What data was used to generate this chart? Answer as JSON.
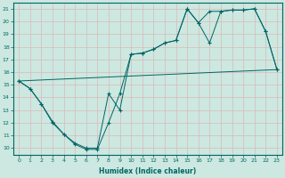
{
  "xlabel": "Humidex (Indice chaleur)",
  "bg_color": "#cce8e0",
  "grid_color": "#dbb8b8",
  "line_color": "#006666",
  "xlim": [
    -0.5,
    23.5
  ],
  "ylim": [
    9.5,
    21.5
  ],
  "xticks": [
    0,
    1,
    2,
    3,
    4,
    5,
    6,
    7,
    8,
    9,
    10,
    11,
    12,
    13,
    14,
    15,
    16,
    17,
    18,
    19,
    20,
    21,
    22,
    23
  ],
  "yticks": [
    10,
    11,
    12,
    13,
    14,
    15,
    16,
    17,
    18,
    19,
    20,
    21
  ],
  "line1_x": [
    0,
    1,
    2,
    3,
    4,
    5,
    6,
    7,
    8,
    9,
    10,
    11,
    12,
    13,
    14,
    15,
    16,
    17,
    18,
    19,
    20,
    21,
    22,
    23
  ],
  "line1_y": [
    15.3,
    14.7,
    13.5,
    12.0,
    11.1,
    10.3,
    9.9,
    9.9,
    12.0,
    14.3,
    17.4,
    17.5,
    17.8,
    18.3,
    18.5,
    21.0,
    19.9,
    20.8,
    20.8,
    20.9,
    20.9,
    21.0,
    19.2,
    16.2
  ],
  "line2_x": [
    0,
    1,
    2,
    3,
    4,
    5,
    6,
    7,
    8,
    9,
    10,
    11,
    12,
    13,
    14,
    15,
    16,
    17,
    18,
    19,
    20,
    21,
    22,
    23
  ],
  "line2_y": [
    15.3,
    14.7,
    13.5,
    12.1,
    11.1,
    10.4,
    10.0,
    10.0,
    14.3,
    13.0,
    17.4,
    17.5,
    17.8,
    18.3,
    18.5,
    21.0,
    19.9,
    18.3,
    20.8,
    20.9,
    20.9,
    21.0,
    19.2,
    16.2
  ],
  "line3_x": [
    0,
    23
  ],
  "line3_y": [
    15.3,
    16.2
  ]
}
